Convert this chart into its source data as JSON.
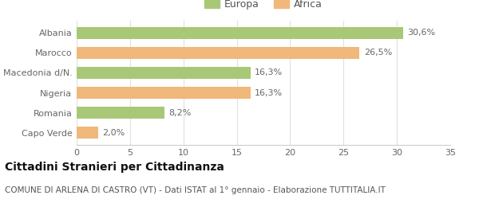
{
  "categories": [
    "Albania",
    "Marocco",
    "Macedonia d/N.",
    "Nigeria",
    "Romania",
    "Capo Verde"
  ],
  "values": [
    30.6,
    26.5,
    16.3,
    16.3,
    8.2,
    2.0
  ],
  "labels": [
    "30,6%",
    "26,5%",
    "16,3%",
    "16,3%",
    "8,2%",
    "2,0%"
  ],
  "colors": [
    "#a8c878",
    "#f0b87a",
    "#a8c878",
    "#f0b87a",
    "#a8c878",
    "#f0b87a"
  ],
  "legend_colors": {
    "Europa": "#a8c878",
    "Africa": "#f0b87a"
  },
  "xlim": [
    0,
    35
  ],
  "xticks": [
    0,
    5,
    10,
    15,
    20,
    25,
    30,
    35
  ],
  "title_main": "Cittadini Stranieri per Cittadinanza",
  "title_sub": "COMUNE DI ARLENA DI CASTRO (VT) - Dati ISTAT al 1° gennaio - Elaborazione TUTTITALIA.IT",
  "background_color": "#ffffff",
  "bar_height": 0.6,
  "label_fontsize": 8,
  "ytick_fontsize": 8,
  "xtick_fontsize": 8,
  "title_fontsize": 10,
  "subtitle_fontsize": 7.5
}
